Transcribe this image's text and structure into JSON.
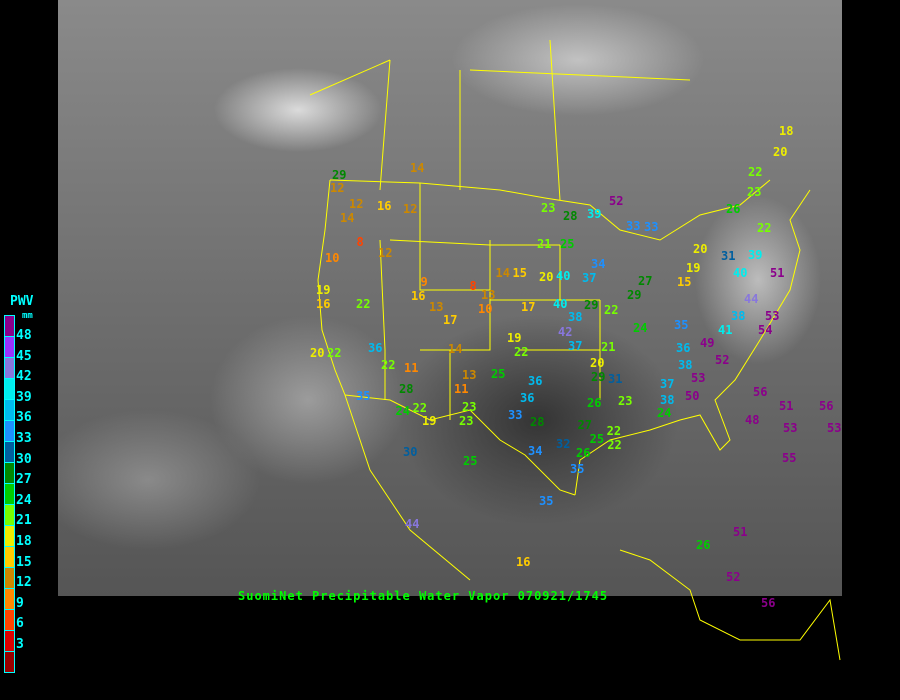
{
  "title": "SuomiNet Precipitable Water Vapor 070921/1745",
  "legend": {
    "title": "PWV",
    "unit": "mm",
    "ticks": [
      "48",
      "45",
      "42",
      "39",
      "36",
      "33",
      "30",
      "27",
      "24",
      "21",
      "18",
      "15",
      "12",
      "9",
      "6",
      "3"
    ],
    "colors": [
      "#8b008b",
      "#9933ff",
      "#8877dd",
      "#00eeee",
      "#00bbee",
      "#1e90ff",
      "#005f9f",
      "#008800",
      "#00cc00",
      "#77ff00",
      "#eeee00",
      "#ffcc00",
      "#cc8800",
      "#ff8800",
      "#ff4400",
      "#dd0000",
      "#990000"
    ]
  },
  "border_color": "#ffff00",
  "stations": [
    "29",
    "12",
    "12",
    "14",
    "16",
    "12",
    "14",
    "8",
    "12",
    "10",
    "9",
    "16",
    "13",
    "17",
    "8",
    "13",
    "10",
    "14",
    "15",
    "17",
    "19",
    "16",
    "22",
    "14",
    "13",
    "11",
    "11",
    "20",
    "22",
    "36",
    "22",
    "28",
    "24",
    "22",
    "19",
    "23",
    "23",
    "25",
    "30",
    "35",
    "44",
    "16",
    "35",
    "34",
    "19",
    "22",
    "25",
    "36",
    "36",
    "28",
    "33",
    "42",
    "40",
    "38",
    "37",
    "20",
    "29",
    "31",
    "26",
    "27",
    "25",
    "22",
    "26",
    "35",
    "32",
    "23",
    "21",
    "22",
    "29",
    "40",
    "37",
    "34",
    "20",
    "21",
    "25",
    "23",
    "28",
    "39",
    "52",
    "33",
    "33",
    "20",
    "19",
    "15",
    "27",
    "29",
    "24",
    "35",
    "36",
    "38",
    "37",
    "38",
    "24",
    "50",
    "49",
    "52",
    "41",
    "38",
    "40",
    "44",
    "51",
    "53",
    "54",
    "53",
    "56",
    "48",
    "51",
    "53",
    "55",
    "56",
    "53",
    "51",
    "52",
    "26",
    "56",
    "22",
    "23",
    "26",
    "22",
    "18",
    "20",
    "31",
    "39",
    "22"
  ]
}
